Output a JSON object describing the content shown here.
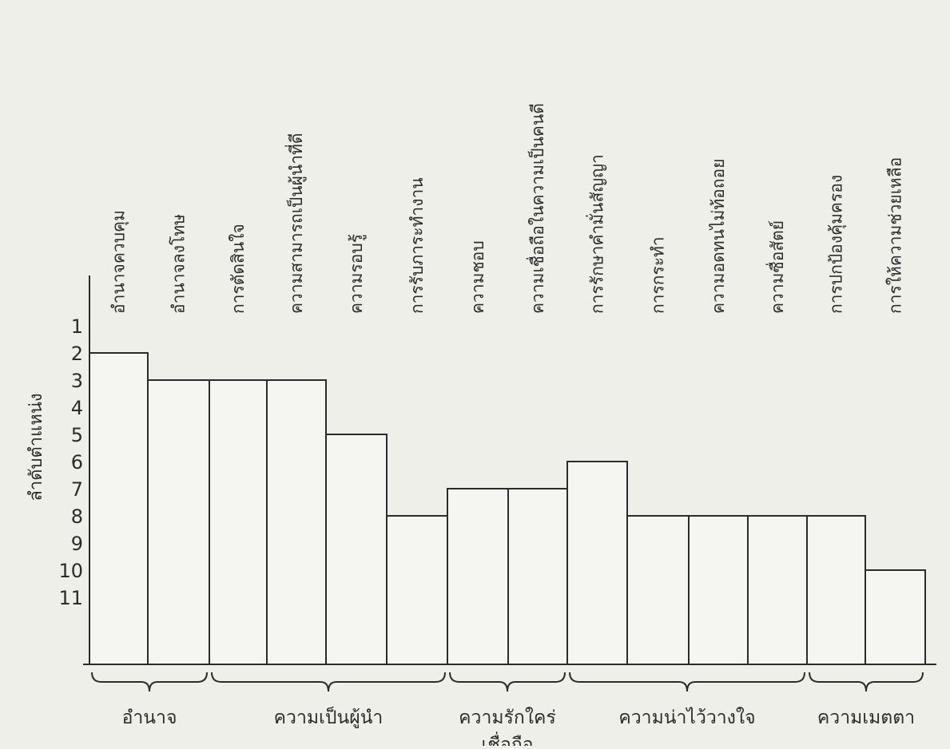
{
  "chart_data": {
    "type": "bar",
    "ylabel": "ลำดับตำแหน่ง",
    "y_ticks": [
      "1",
      "2",
      "3",
      "4",
      "5",
      "6",
      "7",
      "8",
      "9",
      "10",
      "11"
    ],
    "ylim": [
      1,
      11
    ],
    "y_inverted": true,
    "categories": [
      "อำนาจควบคุม",
      "อำนาจลงโทษ",
      "การตัดสินใจ",
      "ความสามารถเป็นผู้นำที่ดี",
      "ความรอบรู้",
      "การรับภาระทำงาน",
      "ความชอบ",
      "ความเชื่อถือในความเป็นคนดี",
      "การรักษาคำมั่นสัญญา",
      "การกระทำ",
      "ความอดทนไม่ท้อถอย",
      "ความซื่อสัตย์",
      "การปกป้องคุ้มครอง",
      "การให้ความช่วยเหลือ"
    ],
    "values": [
      2,
      3,
      3,
      3,
      5,
      8,
      7,
      7,
      6,
      8,
      8,
      8,
      8,
      10
    ],
    "groups": [
      {
        "label": "อำนาจ",
        "first": 0,
        "last": 1
      },
      {
        "label": "ความเป็นผู้นำ",
        "first": 2,
        "last": 5
      },
      {
        "label": "ความรักใคร่\nเชื่อถือ",
        "first": 6,
        "last": 7
      },
      {
        "label": "ความน่าไว้วางใจ",
        "first": 8,
        "last": 11
      },
      {
        "label": "ความเมตตา",
        "first": 12,
        "last": 13
      }
    ],
    "colors": {
      "ink": "#2b2b2b",
      "paper": "#efefea",
      "bar_fill": "#f5f5f1"
    }
  }
}
